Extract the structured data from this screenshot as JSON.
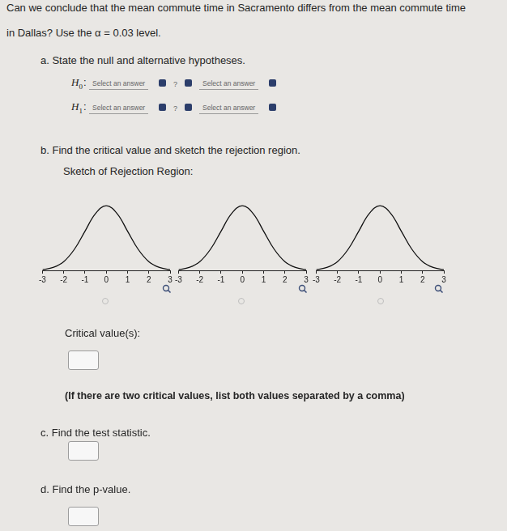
{
  "question": [
    "Can we conclude that the mean commute time in Sacramento differs from the mean commute time",
    "in Dallas? Use the α = 0.03 level."
  ],
  "part_a": {
    "prompt": "a. State the null and alternative hypotheses.",
    "rows": [
      {
        "symbol": "H",
        "subscript": "0",
        "colon": ":",
        "left": "Select an answer",
        "relation": "?",
        "right": "Select an answer"
      },
      {
        "symbol": "H",
        "subscript": "1",
        "colon": ":",
        "left": "Select an answer",
        "relation": "?",
        "right": "Select an answer"
      }
    ]
  },
  "part_b": {
    "prompt": "b. Find the critical value and sketch the rejection region.",
    "sketch_label": "Sketch of Rejection Region:",
    "critical_label": "Critical value(s):",
    "note": "(If there are two critical values, list both values separated by a comma)"
  },
  "part_c": {
    "prompt": "c. Find the test statistic."
  },
  "part_d": {
    "prompt": "d. Find the p-value."
  },
  "chart_data": [
    {
      "type": "line",
      "x": [
        -3,
        -2.5,
        -2,
        -1.5,
        -1,
        -0.5,
        0,
        0.5,
        1,
        1.5,
        2,
        2.5,
        3
      ],
      "values": [
        0.004,
        0.018,
        0.054,
        0.13,
        0.242,
        0.352,
        0.399,
        0.352,
        0.242,
        0.13,
        0.054,
        0.018,
        0.004
      ],
      "xlim": [
        -3,
        3
      ],
      "xticks": [
        -3,
        -2,
        -1,
        0,
        1,
        2,
        3
      ],
      "ylim": [
        0,
        0.42
      ],
      "tick_labels": "x",
      "grid": false,
      "color": "#111111"
    },
    {
      "type": "line",
      "x": [
        -3,
        -2.5,
        -2,
        -1.5,
        -1,
        -0.5,
        0,
        0.5,
        1,
        1.5,
        2,
        2.5,
        3
      ],
      "values": [
        0.004,
        0.018,
        0.054,
        0.13,
        0.242,
        0.352,
        0.399,
        0.352,
        0.242,
        0.13,
        0.054,
        0.018,
        0.004
      ],
      "xlim": [
        -3,
        3
      ],
      "xticks": [
        -3,
        -2,
        -1,
        0,
        1,
        2,
        3
      ],
      "ylim": [
        0,
        0.42
      ],
      "tick_labels": "x",
      "grid": false,
      "color": "#111111"
    },
    {
      "type": "line",
      "x": [
        -3,
        -2.5,
        -2,
        -1.5,
        -1,
        -0.5,
        0,
        0.5,
        1,
        1.5,
        2,
        2.5,
        3
      ],
      "values": [
        0.004,
        0.018,
        0.054,
        0.13,
        0.242,
        0.352,
        0.399,
        0.352,
        0.242,
        0.13,
        0.054,
        0.018,
        0.004
      ],
      "xlim": [
        -3,
        3
      ],
      "xticks": [
        -3,
        -2,
        -1,
        0,
        1,
        2,
        3
      ],
      "ylim": [
        0,
        0.42
      ],
      "tick_labels": "x",
      "grid": false,
      "color": "#111111"
    }
  ]
}
